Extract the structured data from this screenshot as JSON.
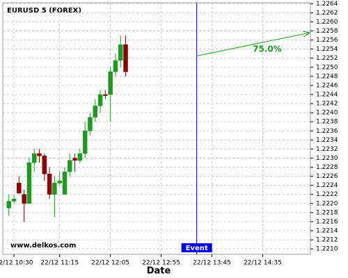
{
  "chart_data": {
    "type": "candlestick",
    "title": "EURUSD 5 (FOREX)",
    "watermark": "www.delkos.com",
    "x_label": "Date",
    "x": [
      "22/12 10:25",
      "22/12 10:30",
      "22/12 10:35",
      "22/12 10:40",
      "22/12 10:45",
      "22/12 10:50",
      "22/12 10:55",
      "22/12 11:00",
      "22/12 11:05",
      "22/12 11:10",
      "22/12 11:15",
      "22/12 11:20",
      "22/12 11:25",
      "22/12 11:30",
      "22/12 11:35",
      "22/12 11:40",
      "22/12 11:45",
      "22/12 11:50",
      "22/12 11:55",
      "22/12 12:00",
      "22/12 12:05",
      "22/12 12:10",
      "22/12 12:15",
      "22/12 12:20"
    ],
    "open": [
      1.2219,
      1.22205,
      1.22245,
      1.2222,
      1.222,
      1.2229,
      1.2231,
      1.22305,
      1.22265,
      1.2222,
      1.22245,
      1.2222,
      1.2227,
      1.223,
      1.22295,
      1.2231,
      1.2236,
      1.2239,
      1.22415,
      1.2244,
      1.2244,
      1.2249,
      1.22515,
      1.2255
    ],
    "high": [
      1.2222,
      1.2222,
      1.2226,
      1.2223,
      1.223,
      1.2232,
      1.2232,
      1.2231,
      1.2228,
      1.2226,
      1.2227,
      1.2228,
      1.2231,
      1.2231,
      1.2232,
      1.2238,
      1.224,
      1.2243,
      1.2245,
      1.2245,
      1.225,
      1.2253,
      1.2257,
      1.2257
    ],
    "low": [
      1.22173,
      1.222,
      1.2222,
      1.2216,
      1.222,
      1.2227,
      1.2229,
      1.2225,
      1.2221,
      1.2217,
      1.2224,
      1.2222,
      1.2226,
      1.2227,
      1.2229,
      1.223,
      1.2235,
      1.2238,
      1.224,
      1.2243,
      1.2238,
      1.2248,
      1.225,
      1.2248
    ],
    "close": [
      1.22205,
      1.2221,
      1.22223,
      1.222,
      1.2229,
      1.2231,
      1.22305,
      1.22265,
      1.2222,
      1.22245,
      1.2225,
      1.2227,
      1.22295,
      1.22295,
      1.2231,
      1.2236,
      1.2239,
      1.22415,
      1.2244,
      1.22438,
      1.2249,
      1.22515,
      1.2255,
      1.2249
    ],
    "up_color": "#1f9a1f",
    "down_color": "#8b0000",
    "xlim": [
      "22/12 10:19",
      "22/12 15:22"
    ],
    "xticks": [
      "22/12 10:30",
      "22/12 11:15",
      "22/12 12:05",
      "22/12 12:55",
      "22/12 13:45",
      "22/12 14:35"
    ],
    "ylim": [
      1.22088,
      1.22642
    ],
    "yticks": [
      {
        "value": 1.221,
        "label": "1.2210"
      },
      1.2212,
      1.2214,
      1.2216,
      1.2218,
      {
        "value": 1.222,
        "label": "1.2220"
      },
      1.2222,
      1.2224,
      1.2226,
      1.2228,
      {
        "value": 1.223,
        "label": "1.2230"
      },
      1.2232,
      1.2234,
      1.2236,
      1.2238,
      {
        "value": 1.224,
        "label": "1.2240"
      },
      1.2242,
      1.2244,
      1.2246,
      1.2248,
      {
        "value": 1.225,
        "label": "1.2250"
      },
      1.2252,
      1.2254,
      1.2256,
      1.2258,
      {
        "value": 1.226,
        "label": "1.2260"
      },
      1.2262,
      1.2264
    ],
    "grid": true,
    "event": {
      "label": "Event",
      "x": "22/12 13:30",
      "color": "#0000ee"
    },
    "arrow": {
      "text": "75.0%",
      "y_start": 1.22525,
      "y_end": 1.22576,
      "color": "#1f9a1f"
    }
  }
}
